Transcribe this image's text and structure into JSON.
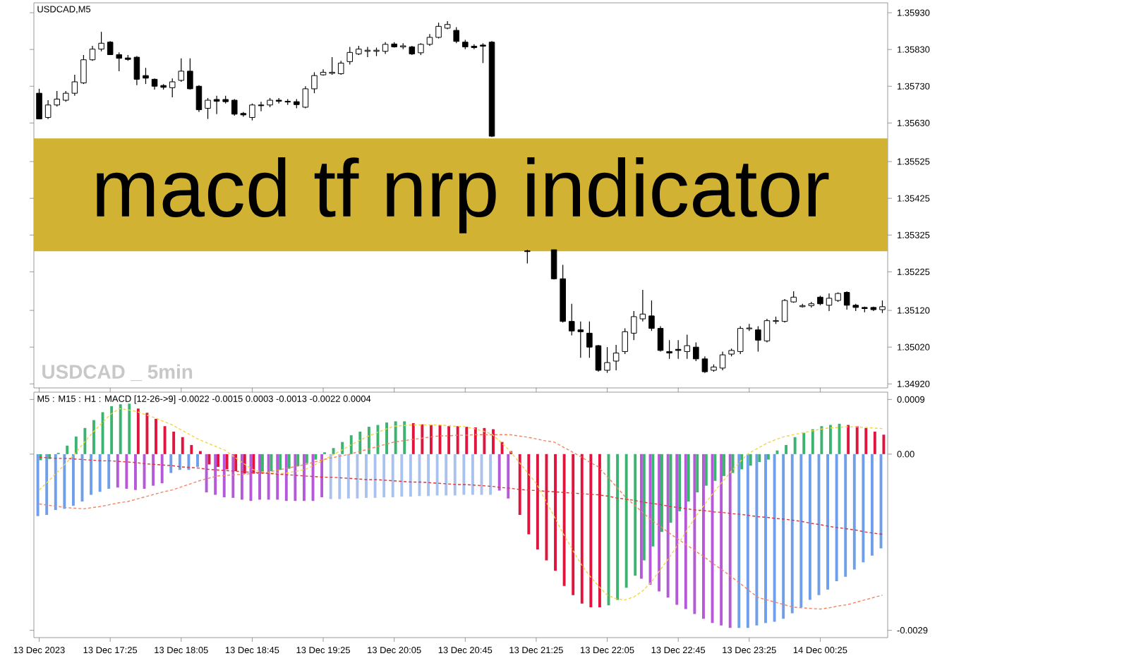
{
  "chart_data": [
    {
      "type": "candlestick",
      "title": "macd  tf nrp indicator",
      "subtitle": "USDCAD,M5",
      "annotations": [
        "USDCAD _ 5min"
      ],
      "categories": [
        null,
        null,
        null,
        null,
        null,
        null,
        null,
        null,
        null,
        null,
        null,
        null,
        null,
        null,
        null,
        null,
        null,
        null,
        null,
        null,
        null,
        null,
        null,
        null,
        null,
        null,
        null,
        null,
        null,
        null,
        null,
        null,
        null,
        null,
        null,
        null,
        null,
        null,
        null,
        null,
        null,
        null,
        null,
        null,
        null,
        null,
        null,
        null,
        null,
        null,
        null,
        null,
        null,
        null,
        null,
        null,
        null,
        null,
        null,
        null,
        null,
        null,
        null,
        null,
        null,
        null,
        null,
        null,
        null,
        null,
        null,
        null,
        null,
        null,
        null,
        null,
        null,
        null,
        null,
        null,
        null,
        null,
        null,
        null,
        null,
        null,
        null,
        null,
        null,
        null,
        null,
        null,
        null,
        null,
        null,
        null
      ],
      "tick_labels": "y",
      "ohlc": [
        [
          1.35711,
          1.35723,
          1.35641,
          1.35641
        ],
        [
          1.35645,
          1.35692,
          1.35641,
          1.35679
        ],
        [
          1.35679,
          1.35717,
          1.35675,
          1.35695
        ],
        [
          1.35692,
          1.35717,
          1.35688,
          1.35711
        ],
        [
          1.35711,
          1.35761,
          1.35704,
          1.35742
        ],
        [
          1.35739,
          1.35815,
          1.35736,
          1.35802
        ],
        [
          1.35802,
          1.3584,
          1.35799,
          1.35831
        ],
        [
          1.35831,
          1.35878,
          1.35825,
          1.35847
        ],
        [
          1.3585,
          1.35853,
          1.35815,
          1.35816
        ],
        [
          1.35816,
          1.35822,
          1.35771,
          1.35806
        ],
        [
          1.35807,
          1.35815,
          1.35799,
          1.35803
        ],
        [
          1.35809,
          1.35812,
          1.35733,
          1.35749
        ],
        [
          1.35759,
          1.3578,
          1.35736,
          1.35752
        ],
        [
          1.35749,
          1.35751,
          1.35721,
          1.3573
        ],
        [
          1.35732,
          1.35736,
          1.35721,
          1.35727
        ],
        [
          1.35726,
          1.35751,
          1.357,
          1.35742
        ],
        [
          1.35746,
          1.35806,
          1.35742,
          1.35771
        ],
        [
          1.35771,
          1.35806,
          1.35721,
          1.35723
        ],
        [
          1.3573,
          1.35733,
          1.3566,
          1.35666
        ],
        [
          1.3567,
          1.35698,
          1.35641,
          1.35692
        ],
        [
          1.35694,
          1.35704,
          1.35654,
          1.35689
        ],
        [
          1.35694,
          1.35704,
          1.35683,
          1.35688
        ],
        [
          1.35692,
          1.35695,
          1.3565,
          1.35654
        ],
        [
          1.35656,
          1.3566,
          1.35647,
          1.35652
        ],
        [
          1.35645,
          1.35683,
          1.35637,
          1.35679
        ],
        [
          1.35679,
          1.35688,
          1.35662,
          1.35677
        ],
        [
          1.35679,
          1.35698,
          1.35673,
          1.35692
        ],
        [
          1.35692,
          1.35698,
          1.35683,
          1.35689
        ],
        [
          1.35689,
          1.35695,
          1.35679,
          1.35687
        ],
        [
          1.35688,
          1.35695,
          1.3567,
          1.3568
        ],
        [
          1.35673,
          1.3573,
          1.3567,
          1.35723
        ],
        [
          1.35723,
          1.35768,
          1.35711,
          1.35759
        ],
        [
          1.35761,
          1.35776,
          1.35759,
          1.35768
        ],
        [
          1.35765,
          1.35809,
          1.35761,
          1.35768
        ],
        [
          1.35764,
          1.35799,
          1.35761,
          1.35793
        ],
        [
          1.35797,
          1.35837,
          1.35789,
          1.35822
        ],
        [
          1.35818,
          1.3584,
          1.35815,
          1.35831
        ],
        [
          1.35825,
          1.35837,
          1.35809,
          1.35828
        ],
        [
          1.35825,
          1.35835,
          1.35812,
          1.35828
        ],
        [
          1.35825,
          1.3585,
          1.35818,
          1.35844
        ],
        [
          1.35845,
          1.3585,
          1.35835,
          1.35837
        ],
        [
          1.35837,
          1.35847,
          1.35831,
          1.3584
        ],
        [
          1.35837,
          1.3584,
          1.35815,
          1.35818
        ],
        [
          1.35821,
          1.35847,
          1.35815,
          1.35844
        ],
        [
          1.35844,
          1.35872,
          1.3584,
          1.35863
        ],
        [
          1.35863,
          1.35903,
          1.3586,
          1.35893
        ],
        [
          1.35888,
          1.35907,
          1.35885,
          1.35898
        ],
        [
          1.35882,
          1.35891,
          1.35847,
          1.35852
        ],
        [
          1.3585,
          1.35856,
          1.35831,
          1.35837
        ],
        [
          1.35839,
          1.35844,
          1.35831,
          1.35835
        ],
        [
          1.35842,
          1.35847,
          1.35793,
          1.35839
        ],
        [
          1.3585,
          1.35853,
          1.35592,
          1.35594
        ],
        null,
        null,
        null,
        [
          1.35282,
          1.35285,
          1.35248,
          1.3528
        ],
        null,
        null,
        [
          1.35285,
          1.35285,
          1.35204,
          1.35206
        ],
        [
          1.35206,
          1.35244,
          1.35087,
          1.3509
        ],
        [
          1.3509,
          1.35138,
          1.35052,
          1.35064
        ],
        [
          1.35067,
          1.3509,
          1.34991,
          1.35062
        ],
        [
          1.35058,
          1.3509,
          1.34991,
          1.3502
        ],
        [
          1.35024,
          1.35026,
          1.34953,
          1.34957
        ],
        [
          1.34957,
          1.3502,
          1.3495,
          1.34978
        ],
        [
          1.34982,
          1.35026,
          1.34957,
          1.35004
        ],
        [
          1.35008,
          1.35071,
          1.35001,
          1.35062
        ],
        [
          1.35058,
          1.35118,
          1.35039,
          1.35103
        ],
        [
          1.35097,
          1.35176,
          1.3509,
          1.3511
        ],
        [
          1.35105,
          1.35147,
          1.35064,
          1.35071
        ],
        [
          1.35071,
          1.35077,
          1.35008,
          1.35011
        ],
        [
          1.35008,
          1.35039,
          1.34988,
          1.35004
        ],
        [
          1.35014,
          1.35039,
          1.34988,
          1.35011
        ],
        [
          1.35008,
          1.35054,
          1.34988,
          1.35024
        ],
        [
          1.3502,
          1.35033,
          1.34982,
          1.34988
        ],
        [
          1.34988,
          1.34995,
          1.3495,
          1.34953
        ],
        [
          1.34957,
          1.34973,
          1.34953,
          1.34966
        ],
        [
          1.34963,
          1.35008,
          1.34957,
          1.34999
        ],
        [
          1.35001,
          1.35016,
          1.34995,
          1.35011
        ],
        [
          1.35008,
          1.35077,
          1.35001,
          1.35071
        ],
        [
          1.3507,
          1.35083,
          1.35064,
          1.35072
        ],
        [
          1.35067,
          1.35077,
          1.35008,
          1.35039
        ],
        [
          1.35037,
          1.35097,
          1.35033,
          1.35092
        ],
        [
          1.3509,
          1.35103,
          1.35083,
          1.35092
        ],
        [
          1.3509,
          1.35151,
          1.35087,
          1.35147
        ],
        [
          1.35143,
          1.35172,
          1.35141,
          1.35156
        ],
        [
          1.3513,
          1.35138,
          1.35128,
          1.35133
        ],
        [
          1.35133,
          1.35143,
          1.35128,
          1.35138
        ],
        [
          1.35156,
          1.3516,
          1.35134,
          1.35138
        ],
        [
          1.35134,
          1.35166,
          1.35118,
          1.35153
        ],
        [
          1.35147,
          1.35169,
          1.35143,
          1.35166
        ],
        [
          1.35169,
          1.35172,
          1.35122,
          1.35134
        ],
        [
          1.35134,
          1.35138,
          1.35118,
          1.35128
        ],
        [
          1.35128,
          1.3513,
          1.35115,
          1.35125
        ],
        [
          1.35128,
          1.3513,
          1.35118,
          1.35122
        ],
        [
          1.35122,
          1.35147,
          1.35113,
          1.3513
        ]
      ],
      "ylim": [
        1.34909,
        1.35957
      ],
      "yticks": [
        {
          "value": 1.3593,
          "label": "1.35930"
        },
        {
          "value": 1.3583,
          "label": "1.35830"
        },
        {
          "value": 1.3573,
          "label": "1.35730"
        },
        {
          "value": 1.3563,
          "label": "1.35630"
        },
        {
          "value": 1.35525,
          "label": "1.35525"
        },
        {
          "value": 1.35425,
          "label": "1.35425"
        },
        {
          "value": 1.35325,
          "label": "1.35325"
        },
        {
          "value": 1.35225,
          "label": "1.35225"
        },
        {
          "value": 1.3512,
          "label": "1.35120"
        },
        {
          "value": 1.3502,
          "label": "1.35020"
        },
        {
          "value": 1.3492,
          "label": "1.34920"
        }
      ]
    },
    {
      "type": "bar",
      "title": "M5 : M15 : H1 : MACD [12-26->9] -0.0022 -0.0015 0.0003 -0.0013 -0.0022 0.0004",
      "categories": [
        "13 Dec 2023",
        null,
        null,
        null,
        null,
        null,
        null,
        null,
        "13 Dec 17:25",
        null,
        null,
        null,
        null,
        null,
        null,
        null,
        "13 Dec 18:05",
        null,
        null,
        null,
        null,
        null,
        null,
        null,
        "13 Dec 18:45",
        null,
        null,
        null,
        null,
        null,
        null,
        null,
        "13 Dec 19:25",
        null,
        null,
        null,
        null,
        null,
        null,
        null,
        "13 Dec 20:05",
        null,
        null,
        null,
        null,
        null,
        null,
        null,
        "13 Dec 20:45",
        null,
        null,
        null,
        null,
        null,
        null,
        null,
        "13 Dec 21:25",
        null,
        null,
        null,
        null,
        null,
        null,
        null,
        "13 Dec 22:05",
        null,
        null,
        null,
        null,
        null,
        null,
        null,
        "13 Dec 22:45",
        null,
        null,
        null,
        null,
        null,
        null,
        null,
        "13 Dec 23:25",
        null,
        null,
        null,
        null,
        null,
        null,
        null,
        "14 Dec 00:25",
        null,
        null,
        null,
        null,
        null,
        null,
        null
      ],
      "ylim": [
        -0.00302,
        0.00102
      ],
      "yticks": [
        {
          "value": 0.0009,
          "label": "0.0009"
        },
        {
          "value": 0,
          "label": "0.00"
        },
        {
          "value": -0.0029,
          "label": "-0.0029"
        }
      ],
      "series": [
        {
          "type": "bar",
          "values": [
            -0.00102,
            -0.001,
            -0.00092,
            -0.0009,
            -0.00085,
            -0.00078,
            -0.00067,
            -0.00062,
            -0.00057,
            -0.00055,
            -0.00057,
            -0.00059,
            -0.00057,
            -0.00052,
            -0.00048,
            -0.00031,
            -0.00026,
            -0.00026,
            -0.00021,
            -0.00063,
            -0.00067,
            -0.00071,
            -0.00072,
            -0.00075,
            -0.00077,
            -0.00075,
            -0.00075,
            -0.00075,
            -0.00077,
            -0.00077,
            -0.00077,
            -0.00077,
            -0.00071,
            -0.00074,
            -0.00074,
            -0.00073,
            -0.00073,
            -0.00072,
            -0.00072,
            -0.00071,
            -0.00071,
            -0.0007,
            -0.0007,
            -0.00069,
            -0.00069,
            -0.00068,
            -0.00068,
            -0.00068,
            -0.00067,
            -0.00067,
            -0.00067,
            -0.00067,
            -0.0006,
            -0.00073,
            null,
            null,
            null,
            null,
            null,
            null,
            null,
            null,
            null,
            null,
            null,
            null,
            null,
            null,
            -0.00205,
            -0.00215,
            -0.00226,
            -0.00236,
            -0.00248,
            -0.00255,
            -0.00263,
            -0.00271,
            -0.00278,
            -0.00282,
            -0.00286,
            -0.00286,
            -0.00286,
            -0.00282,
            -0.00278,
            -0.00276,
            -0.00271,
            -0.00262,
            -0.00252,
            -0.0024,
            -0.00232,
            -0.00223,
            -0.00209,
            -0.00202,
            -0.0019,
            -0.00178,
            -0.00167,
            -0.00155
          ],
          "colors": [
            "#6f9eea",
            "#6f9eea",
            "#6f9eea",
            "#6f9eea",
            "#6f9eea",
            "#6f9eea",
            "#6f9eea",
            "#6f9eea",
            "#6f9eea",
            "#b659d8",
            "#b659d8",
            "#b659d8",
            "#b659d8",
            "#b659d8",
            "#b659d8",
            "#6f9eea",
            "#6f9eea",
            "#6f9eea",
            "#6f9eea",
            "#b659d8",
            "#b659d8",
            "#b659d8",
            "#b659d8",
            "#b659d8",
            "#b659d8",
            "#b659d8",
            "#b659d8",
            "#b659d8",
            "#b659d8",
            "#b659d8",
            "#b659d8",
            "#b659d8",
            "#b659d8",
            "#a9c2ef",
            "#a9c2ef",
            "#a9c2ef",
            "#a9c2ef",
            "#a9c2ef",
            "#a9c2ef",
            "#a9c2ef",
            "#a9c2ef",
            "#a9c2ef",
            "#a9c2ef",
            "#a9c2ef",
            "#a9c2ef",
            "#a9c2ef",
            "#a9c2ef",
            "#a9c2ef",
            "#a9c2ef",
            "#a9c2ef",
            "#a9c2ef",
            "#a9c2ef",
            "#b659d8",
            "#b659d8",
            null,
            null,
            null,
            null,
            null,
            null,
            null,
            null,
            null,
            null,
            null,
            null,
            null,
            null,
            "#b659d8",
            "#b659d8",
            "#b659d8",
            "#b659d8",
            "#b659d8",
            "#b659d8",
            "#b659d8",
            "#b659d8",
            "#b659d8",
            "#b659d8",
            "#b659d8",
            "#6f9eea",
            "#6f9eea",
            "#6f9eea",
            "#6f9eea",
            "#6f9eea",
            "#6f9eea",
            "#6f9eea",
            "#6f9eea",
            "#6f9eea",
            "#6f9eea",
            "#6f9eea",
            "#6f9eea",
            "#6f9eea",
            "#6f9eea",
            "#6f9eea",
            "#6f9eea",
            "#6f9eea"
          ]
        },
        {
          "type": "bar",
          "values": [
            -0.0001,
            -8e-05,
            2e-05,
            0.00014,
            0.00029,
            0.00043,
            0.00056,
            0.00069,
            0.00079,
            0.00082,
            0.00083,
            0.00075,
            0.00068,
            0.00058,
            0.00046,
            0.00037,
            0.00028,
            0.00015,
            5e-05,
            -0.00017,
            -0.00021,
            -0.00025,
            -0.00028,
            -0.00032,
            -0.00032,
            -0.0003,
            -0.00028,
            -0.00026,
            -0.00024,
            -0.0002,
            -0.00015,
            -9e-05,
            3e-05,
            0.0001,
            0.0002,
            0.00031,
            0.00037,
            0.00045,
            0.00048,
            0.00052,
            0.00054,
            0.00054,
            0.00051,
            0.00049,
            0.00048,
            0.00048,
            0.00046,
            0.00046,
            0.00045,
            0.00044,
            0.00043,
            0.00041,
            0.0002,
            5e-05,
            -0.001,
            -0.00132,
            -0.00157,
            -0.00175,
            -0.00192,
            -0.00217,
            -0.00232,
            -0.00246,
            -0.00252,
            -0.00252,
            -0.00249,
            -0.0024,
            -0.0022,
            -0.002,
            -0.00175,
            -0.00152,
            -0.00128,
            -0.00113,
            -0.00094,
            -0.00078,
            -0.00063,
            -0.00052,
            -0.00044,
            -0.00036,
            -0.00031,
            -0.00025,
            -0.00019,
            -0.00013,
            -9e-05,
            6e-05,
            0.00015,
            0.00028,
            0.00035,
            0.00041,
            0.00046,
            0.00048,
            0.0005,
            0.00048,
            0.00046,
            0.00043,
            0.00037,
            0.00032
          ],
          "colors": [
            "#3cb371",
            "#3cb371",
            "#3cb371",
            "#3cb371",
            "#3cb371",
            "#3cb371",
            "#3cb371",
            "#3cb371",
            "#3cb371",
            "#3cb371",
            "#3cb371",
            "#e0143c",
            "#e0143c",
            "#e0143c",
            "#e0143c",
            "#e0143c",
            "#e0143c",
            "#e0143c",
            "#e0143c",
            "#e0143c",
            "#e0143c",
            "#e0143c",
            "#e0143c",
            "#e0143c",
            "#e0143c",
            "#3cb371",
            "#3cb371",
            "#3cb371",
            "#3cb371",
            "#3cb371",
            "#3cb371",
            "#3cb371",
            "#3cb371",
            "#3cb371",
            "#3cb371",
            "#3cb371",
            "#3cb371",
            "#3cb371",
            "#3cb371",
            "#3cb371",
            "#3cb371",
            "#3cb371",
            "#e0143c",
            "#e0143c",
            "#e0143c",
            "#e0143c",
            "#e0143c",
            "#e0143c",
            "#e0143c",
            "#e0143c",
            "#e0143c",
            "#e0143c",
            "#e0143c",
            "#e0143c",
            "#e0143c",
            "#e0143c",
            "#e0143c",
            "#e0143c",
            "#e0143c",
            "#e0143c",
            "#e0143c",
            "#e0143c",
            "#e0143c",
            "#e0143c",
            "#3cb371",
            "#3cb371",
            "#3cb371",
            "#3cb371",
            "#3cb371",
            "#3cb371",
            "#3cb371",
            "#3cb371",
            "#3cb371",
            "#3cb371",
            "#3cb371",
            "#3cb371",
            "#3cb371",
            "#3cb371",
            "#3cb371",
            "#3cb371",
            "#3cb371",
            "#3cb371",
            "#3cb371",
            "#3cb371",
            "#3cb371",
            "#3cb371",
            "#3cb371",
            "#3cb371",
            "#3cb371",
            "#3cb371",
            "#3cb371",
            "#e0143c",
            "#e0143c",
            "#e0143c",
            "#e0143c",
            "#e0143c"
          ]
        },
        {
          "type": "line",
          "line_style": "dashed",
          "color": "#f5d442",
          "values": [
            -0.00059,
            -0.00045,
            -0.0003,
            -0.00015,
            0,
            0.00018,
            0.00035,
            0.0005,
            0.00065,
            0.00075,
            0.00073,
            0.0007,
            0.00065,
            0.0006,
            0.00054,
            0.00048,
            0.0004,
            0.00032,
            0.00024,
            0.00018,
            0.00012,
            6e-05,
            -5e-05,
            -0.00015,
            -0.00025,
            -0.00029,
            -0.00031,
            -0.00032,
            -0.00031,
            -0.00028,
            -0.00025,
            -0.00018,
            -0.0001,
            -2e-05,
            6e-05,
            0.00014,
            0.00022,
            0.00029,
            0.00035,
            0.00041,
            0.00046,
            0.00047,
            0.00048,
            0.00048,
            0.00048,
            0.00048,
            0.00047,
            0.00046,
            0.00045,
            0.00042,
            0.00038,
            0.00033,
            0.0002,
            6e-05,
            -0.00012,
            -0.0003,
            -0.00048,
            -0.00075,
            -0.00102,
            -0.0013,
            -0.00155,
            -0.0018,
            -0.002,
            -0.00217,
            -0.00232,
            -0.00238,
            -0.0024,
            -0.00235,
            -0.00225,
            -0.0021,
            -0.0019,
            -0.0017,
            -0.00148,
            -0.00125,
            -0.00102,
            -0.00082,
            -0.00063,
            -0.00045,
            -0.00028,
            -0.00012,
            2e-05,
            0.0001,
            0.00018,
            0.00024,
            0.00029,
            0.00032,
            0.00035,
            0.00038,
            0.00041,
            0.00043,
            0.00044,
            0.00045,
            0.00045,
            0.00044,
            0.00043,
            0.00042
          ]
        },
        {
          "type": "line",
          "line_style": "dashed",
          "color": "#f4845f",
          "values": [
            -0.00082,
            -0.00084,
            -0.00086,
            -0.00088,
            -0.00089,
            -0.0009,
            -0.00088,
            -0.00086,
            -0.00083,
            -0.0008,
            -0.00078,
            -0.00074,
            -0.0007,
            -0.00066,
            -0.00062,
            -0.00059,
            -0.00054,
            -0.00049,
            -0.00044,
            -0.0004,
            -0.00036,
            -0.00035,
            -0.00034,
            -0.00033,
            -0.00032,
            -0.00032,
            -0.00029,
            -0.00026,
            -0.00023,
            -0.0002,
            -0.00017,
            -0.00013,
            -9e-05,
            -6e-05,
            -3e-05,
            0,
            4e-05,
            8e-05,
            0.00012,
            0.00016,
            0.0002,
            0.00022,
            0.00024,
            0.00026,
            0.00028,
            0.0003,
            0.0003,
            0.00031,
            0.00031,
            0.00032,
            0.00032,
            0.00032,
            0.00032,
            0.00032,
            0.0003,
            0.00028,
            0.00025,
            0.00022,
            0.0002,
            0.00012,
            4e-05,
            -4e-05,
            -0.00013,
            -0.00021,
            -0.00037,
            -0.00053,
            -0.0007,
            -0.00083,
            -0.00096,
            -0.00109,
            -0.00119,
            -0.0013,
            -0.0014,
            -0.0015,
            -0.0016,
            -0.0017,
            -0.00181,
            -0.00191,
            -0.00202,
            -0.00213,
            -0.00225,
            -0.00236,
            -0.0024,
            -0.00244,
            -0.00248,
            -0.00252,
            -0.00253,
            -0.00254,
            -0.00255,
            -0.00253,
            -0.0025,
            -0.00248,
            -0.00244,
            -0.0024,
            -0.00236,
            -0.00232
          ]
        },
        {
          "type": "line",
          "line_style": "dashed",
          "color": "#d9383a",
          "values": [
            -5e-05,
            -6e-05,
            -7e-05,
            -7e-05,
            -8e-05,
            -9e-05,
            -0.0001,
            -0.00011,
            -0.00011,
            -0.00012,
            -0.00013,
            -0.00014,
            -0.00016,
            -0.00017,
            -0.00018,
            -0.00019,
            -0.00021,
            -0.00022,
            -0.00023,
            -0.00025,
            -0.00026,
            -0.00027,
            -0.00028,
            -0.00029,
            -0.0003,
            -0.00031,
            -0.00032,
            -0.00033,
            -0.00034,
            -0.00035,
            -0.00036,
            -0.00037,
            -0.00038,
            -0.00038,
            -0.00039,
            -0.0004,
            -0.00041,
            -0.00042,
            -0.00042,
            -0.00043,
            -0.00044,
            -0.00045,
            -0.00046,
            -0.00046,
            -0.00047,
            -0.00048,
            -0.00049,
            -0.0005,
            -0.0005,
            -0.00051,
            -0.00052,
            -0.00053,
            -0.00055,
            -0.00056,
            -0.00058,
            -0.00059,
            -0.0006,
            -0.00061,
            -0.00062,
            -0.00063,
            -0.00064,
            -0.00065,
            -0.00066,
            -0.00067,
            -0.00069,
            -0.00072,
            -0.00074,
            -0.00076,
            -0.00079,
            -0.00081,
            -0.00083,
            -0.00086,
            -0.00088,
            -0.0009,
            -0.00092,
            -0.00093,
            -0.00095,
            -0.00096,
            -0.00098,
            -0.00099,
            -0.00101,
            -0.00103,
            -0.00104,
            -0.00106,
            -0.00107,
            -0.00109,
            -0.00111,
            -0.00114,
            -0.00116,
            -0.00119,
            -0.00121,
            -0.00123,
            -0.00125,
            -0.00128,
            -0.0013,
            -0.00132
          ]
        }
      ]
    }
  ]
}
